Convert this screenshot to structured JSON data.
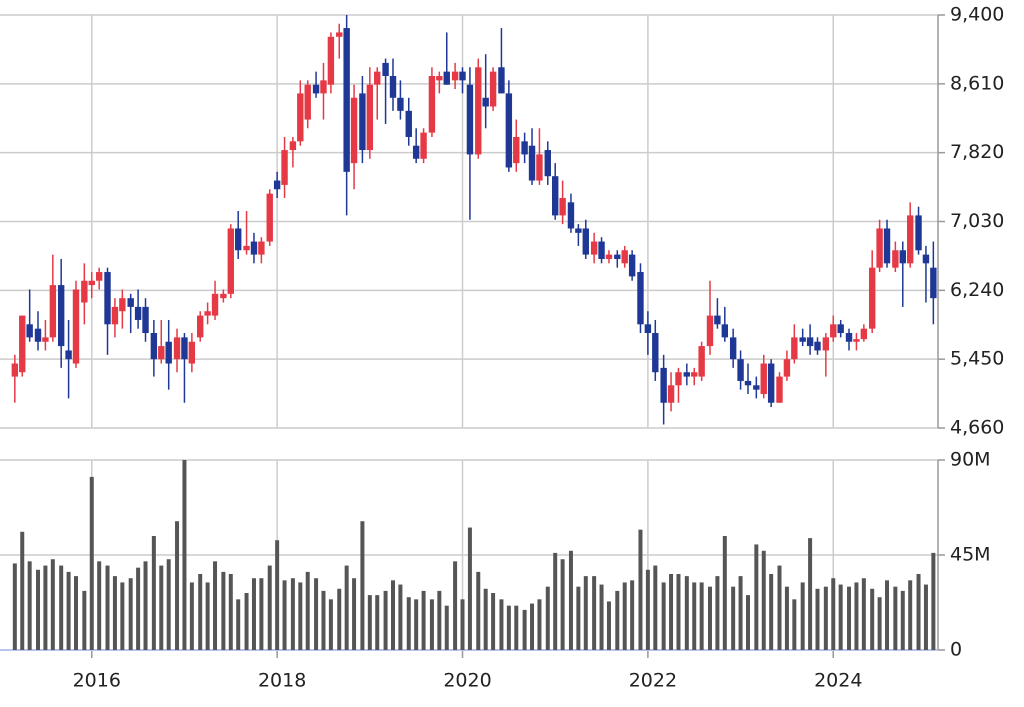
{
  "chart_data": {
    "type": "candlestick",
    "x": [
      2015.17,
      2015.25,
      2015.33,
      2015.42,
      2015.5,
      2015.58,
      2015.67,
      2015.75,
      2015.83,
      2015.92,
      2016,
      2016.08,
      2016.17,
      2016.25,
      2016.33,
      2016.42,
      2016.5,
      2016.58,
      2016.67,
      2016.75,
      2016.83,
      2016.92,
      2017,
      2017.08,
      2017.17,
      2017.25,
      2017.33,
      2017.42,
      2017.5,
      2017.58,
      2017.67,
      2017.75,
      2017.83,
      2017.92,
      2018,
      2018.08,
      2018.17,
      2018.25,
      2018.33,
      2018.42,
      2018.5,
      2018.58,
      2018.67,
      2018.75,
      2018.83,
      2018.92,
      2019,
      2019.08,
      2019.17,
      2019.25,
      2019.33,
      2019.42,
      2019.5,
      2019.58,
      2019.67,
      2019.75,
      2019.83,
      2019.92,
      2020,
      2020.08,
      2020.17,
      2020.25,
      2020.33,
      2020.42,
      2020.5,
      2020.58,
      2020.67,
      2020.75,
      2020.83,
      2020.92,
      2021,
      2021.08,
      2021.17,
      2021.25,
      2021.33,
      2021.42,
      2021.5,
      2021.58,
      2021.67,
      2021.75,
      2021.83,
      2021.92,
      2022,
      2022.08,
      2022.17,
      2022.25,
      2022.33,
      2022.42,
      2022.5,
      2022.58,
      2022.67,
      2022.75,
      2022.83,
      2022.92,
      2023,
      2023.08,
      2023.17,
      2023.25,
      2023.33,
      2023.42,
      2023.5,
      2023.58,
      2023.67,
      2023.75,
      2023.83,
      2023.92,
      2024,
      2024.08,
      2024.17,
      2024.25,
      2024.33,
      2024.42,
      2024.5,
      2024.58,
      2024.67,
      2024.75,
      2024.83,
      2024.92,
      2025,
      2025.08
    ],
    "open": [
      5250,
      5300,
      5850,
      5800,
      5650,
      5700,
      6300,
      5550,
      5400,
      6100,
      6300,
      6350,
      6450,
      5850,
      6000,
      6150,
      6050,
      6050,
      5750,
      5450,
      5650,
      5450,
      5700,
      5400,
      5700,
      5950,
      5950,
      6150,
      6200,
      6950,
      6700,
      6800,
      6650,
      6800,
      7500,
      7450,
      7850,
      7950,
      8200,
      8600,
      8500,
      8600,
      9150,
      9250,
      7700,
      8500,
      7850,
      8600,
      8850,
      8700,
      8450,
      8300,
      7900,
      7750,
      8050,
      8650,
      8750,
      8650,
      8750,
      8600,
      7800,
      8450,
      8350,
      8800,
      8500,
      7700,
      7950,
      7900,
      7500,
      7850,
      7550,
      7100,
      7250,
      6950,
      6950,
      6650,
      6800,
      6600,
      6650,
      6550,
      6650,
      6450,
      5850,
      5750,
      5350,
      4950,
      5150,
      5300,
      5250,
      5250,
      5600,
      5950,
      5850,
      5700,
      5450,
      5200,
      5150,
      5050,
      5400,
      4950,
      5250,
      5450,
      5700,
      5700,
      5650,
      5550,
      5700,
      5850,
      5750,
      5650,
      5680,
      5800,
      6500,
      6950,
      6500,
      6700,
      6550,
      7100,
      6650,
      6500
    ],
    "high": [
      5500,
      5950,
      6250,
      6000,
      5900,
      6650,
      6600,
      5900,
      6350,
      6550,
      6450,
      6500,
      6500,
      6150,
      6250,
      6200,
      6250,
      6150,
      5900,
      5900,
      5900,
      5800,
      5750,
      5750,
      6000,
      6100,
      6350,
      6250,
      7000,
      7150,
      7150,
      6900,
      6850,
      7400,
      7600,
      8000,
      8000,
      8650,
      8650,
      8750,
      8850,
      9200,
      9300,
      9400,
      8600,
      8700,
      8800,
      8800,
      8900,
      8900,
      8650,
      8450,
      8100,
      8100,
      8800,
      8750,
      9200,
      8850,
      8800,
      8800,
      8900,
      8950,
      8800,
      9250,
      8650,
      8200,
      8050,
      8100,
      8100,
      7950,
      7700,
      7500,
      7350,
      7000,
      7050,
      6900,
      6850,
      6700,
      6700,
      6750,
      6700,
      6550,
      6000,
      5900,
      5500,
      5300,
      5350,
      5400,
      5350,
      5650,
      6350,
      6150,
      6050,
      5800,
      5550,
      5400,
      5250,
      5500,
      5450,
      5300,
      5550,
      5850,
      5800,
      5850,
      5700,
      5750,
      5950,
      5900,
      5800,
      5750,
      5850,
      6700,
      7050,
      7050,
      6800,
      6800,
      7250,
      7200,
      6750,
      6800
    ],
    "low": [
      4950,
      5250,
      5650,
      5550,
      5550,
      5650,
      5350,
      5000,
      5350,
      5850,
      6150,
      6250,
      5500,
      5700,
      5800,
      5750,
      5800,
      5650,
      5250,
      5400,
      5100,
      5300,
      4950,
      5300,
      5650,
      5850,
      5900,
      6100,
      6150,
      6600,
      6650,
      6550,
      6550,
      6750,
      7300,
      7300,
      7650,
      7900,
      8100,
      8450,
      8200,
      8500,
      8900,
      7100,
      7400,
      7700,
      7750,
      8200,
      8150,
      8300,
      8200,
      7900,
      7700,
      7700,
      8000,
      8500,
      8600,
      8550,
      8500,
      7050,
      7750,
      8100,
      8300,
      8500,
      7600,
      7600,
      7700,
      7450,
      7450,
      7450,
      7050,
      7000,
      6900,
      6750,
      6600,
      6550,
      6550,
      6550,
      6500,
      6500,
      6350,
      5750,
      5500,
      5200,
      4700,
      4850,
      4950,
      5150,
      5150,
      5200,
      5500,
      5800,
      5650,
      5350,
      5100,
      5050,
      5000,
      5000,
      4900,
      4950,
      5200,
      5400,
      5600,
      5500,
      5500,
      5250,
      5650,
      5700,
      5550,
      5550,
      5650,
      5750,
      6450,
      6500,
      6450,
      6050,
      6500,
      6650,
      6100,
      5850
    ],
    "close": [
      5400,
      5950,
      5700,
      5650,
      5700,
      6300,
      5600,
      5450,
      6250,
      6350,
      6350,
      6450,
      5850,
      6050,
      6150,
      6050,
      5900,
      5750,
      5450,
      5600,
      5400,
      5700,
      5450,
      5650,
      5950,
      6000,
      6200,
      6200,
      6950,
      6700,
      6750,
      6650,
      6800,
      7350,
      7400,
      7850,
      7950,
      8500,
      8600,
      8500,
      8650,
      9150,
      9200,
      7600,
      8450,
      7850,
      8600,
      8750,
      8700,
      8450,
      8300,
      8000,
      7750,
      8050,
      8700,
      8700,
      8600,
      8750,
      8650,
      7800,
      8800,
      8350,
      8750,
      8500,
      7650,
      8000,
      7800,
      7500,
      7800,
      7550,
      7100,
      7300,
      6950,
      6900,
      6650,
      6800,
      6600,
      6650,
      6600,
      6700,
      6400,
      5850,
      5750,
      5300,
      4950,
      5150,
      5300,
      5250,
      5300,
      5600,
      5950,
      5850,
      5700,
      5450,
      5200,
      5150,
      5100,
      5400,
      4950,
      5250,
      5450,
      5700,
      5650,
      5600,
      5550,
      5700,
      5850,
      5750,
      5650,
      5680,
      5800,
      6500,
      6950,
      6550,
      6700,
      6550,
      7100,
      6700,
      6550,
      6150
    ],
    "up_color": "#e63946",
    "down_color": "#1f3795",
    "xlim": [
      2015.01,
      2025.13
    ],
    "xticks": [
      2016,
      2018,
      2020,
      2022,
      2024
    ],
    "ylim": [
      4660,
      9400
    ],
    "yticks": [
      {
        "value": 4660,
        "label": "4,660"
      },
      {
        "value": 5450,
        "label": "5,450"
      },
      {
        "value": 6240,
        "label": "6,240"
      },
      {
        "value": 7030,
        "label": "7,030"
      },
      {
        "value": 7820,
        "label": "7,820"
      },
      {
        "value": 8610,
        "label": "8,610"
      },
      {
        "value": 9400,
        "label": "9,400"
      }
    ],
    "grid": true,
    "volume": {
      "type": "bar",
      "color": "#555555",
      "ylim": [
        0,
        90
      ],
      "yticks": [
        0,
        {
          "value": 45,
          "label": "45M"
        },
        {
          "value": 90,
          "label": "90M"
        }
      ],
      "values": [
        41,
        56,
        42,
        38,
        40,
        43,
        40,
        37,
        35,
        28,
        82,
        42,
        40,
        35,
        32,
        34,
        39,
        42,
        54,
        40,
        43,
        61,
        90,
        32,
        36,
        32,
        42,
        37,
        36,
        24,
        27,
        34,
        34,
        40,
        52,
        33,
        34,
        32,
        37,
        34,
        28,
        24,
        29,
        40,
        34,
        61,
        26,
        26,
        28,
        33,
        31,
        25,
        24,
        28,
        24,
        28,
        21,
        42,
        24,
        58,
        37,
        29,
        27,
        24,
        21,
        21,
        19,
        22,
        24,
        30,
        46,
        43,
        47,
        30,
        35,
        35,
        31,
        23,
        28,
        32,
        33,
        57,
        38,
        40,
        32,
        36,
        36,
        35,
        32,
        32,
        30,
        35,
        54,
        30,
        35,
        26,
        50,
        47,
        36,
        40,
        30,
        24,
        32,
        53,
        29,
        30,
        34,
        31,
        30,
        32,
        34,
        29,
        25,
        33,
        30,
        28,
        33,
        36,
        31,
        46
      ]
    }
  }
}
